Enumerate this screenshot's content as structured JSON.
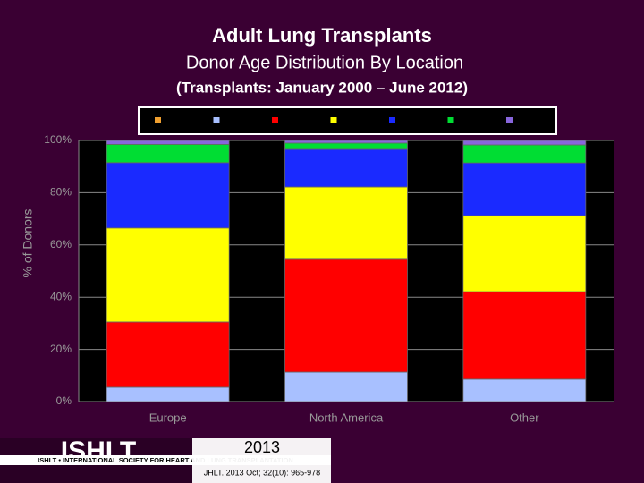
{
  "chart_data": {
    "type": "stacked_bar",
    "title": "Adult Lung Transplants",
    "subtitle": "Donor Age Distribution By Location",
    "note": "(Transplants: January 2000 – June 2012)",
    "ylabel": "% of Donors",
    "categories": [
      "Europe",
      "North America",
      "Other"
    ],
    "series": [
      {
        "color": "#f0a030",
        "values": [
          0,
          0,
          0
        ]
      },
      {
        "color": "#a8c0ff",
        "values": [
          5.5,
          11.3,
          8.6
        ]
      },
      {
        "color": "#ff0000",
        "values": [
          25,
          43.2,
          33.5
        ]
      },
      {
        "color": "#ffff00",
        "values": [
          36,
          27.7,
          29.1
        ]
      },
      {
        "color": "#1a2aff",
        "values": [
          25,
          14.4,
          20.2
        ]
      },
      {
        "color": "#00dd33",
        "values": [
          7,
          2.4,
          6.9
        ]
      },
      {
        "color": "#8866dd",
        "values": [
          1.5,
          1,
          1.7
        ]
      }
    ],
    "ylim": [
      0,
      100
    ],
    "yticks": [
      {
        "value": 0,
        "label": "0%"
      },
      {
        "value": 20,
        "label": "20%"
      },
      {
        "value": 40,
        "label": "40%"
      },
      {
        "value": 60,
        "label": "60%"
      },
      {
        "value": 80,
        "label": "80%"
      },
      {
        "value": 100,
        "label": "100%"
      }
    ],
    "grid": true
  },
  "footer": {
    "logo": "ISHLT",
    "society": "ISHLT • INTERNATIONAL SOCIETY FOR HEART AND LUNG TRANSPLANTATION",
    "year": "2013",
    "citation": "JHLT. 2013 Oct; 32(10): 965-978"
  }
}
